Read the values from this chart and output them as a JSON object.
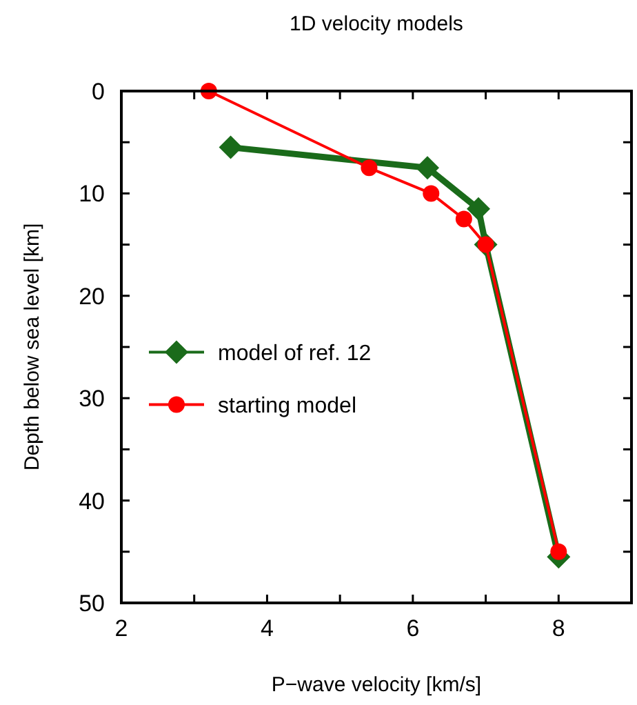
{
  "chart_data": {
    "type": "line",
    "title": "1D velocity models",
    "xlabel": "P−wave velocity [km/s]",
    "ylabel": "Depth below sea level [km]",
    "xlim": [
      2,
      9
    ],
    "xticks": [
      2,
      {
        "value": 3,
        "label": null
      },
      4,
      {
        "value": 5,
        "label": null
      },
      6,
      {
        "value": 7,
        "label": null
      },
      8,
      {
        "value": 9,
        "label": null
      }
    ],
    "ylim": [
      50,
      0
    ],
    "yticks": [
      0,
      {
        "value": 5,
        "label": null
      },
      10,
      {
        "value": 15,
        "label": null
      },
      20,
      {
        "value": 25,
        "label": null
      },
      30,
      {
        "value": 35,
        "label": null
      },
      40,
      {
        "value": 45,
        "label": null
      },
      50
    ],
    "grid": false,
    "legend": "left",
    "line_style": "solid",
    "series": [
      {
        "name": "model of ref. 12",
        "color": "#1a6b1a",
        "marker": "diamond",
        "x": [
          3.5,
          6.2,
          6.9,
          7.0,
          8
        ],
        "values": [
          5.5,
          7.5,
          11.5,
          15,
          45.5
        ]
      },
      {
        "name": "starting model",
        "color": "#ff0000",
        "marker": "circle",
        "x": [
          3.2,
          5.4,
          6.25,
          6.7,
          7.0,
          8
        ],
        "values": [
          0,
          7.5,
          10,
          12.5,
          15,
          45
        ]
      }
    ]
  }
}
